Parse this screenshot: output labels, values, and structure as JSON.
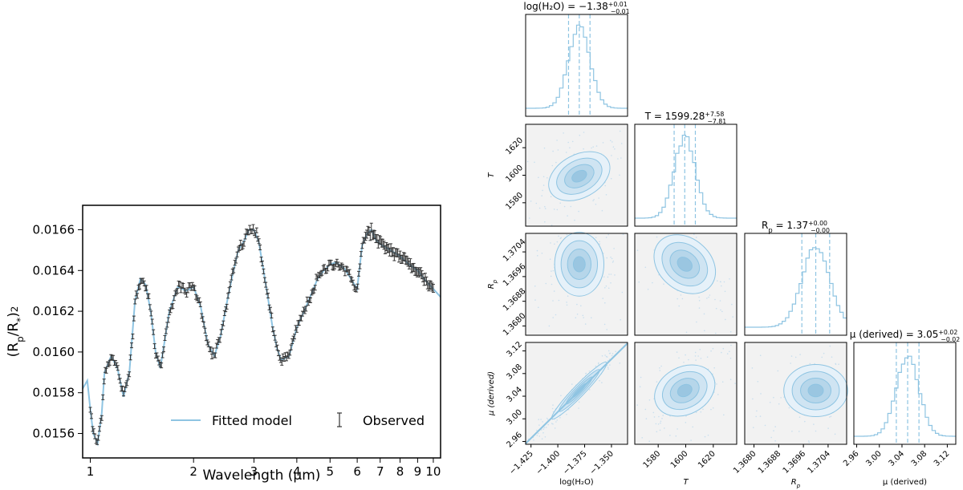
{
  "colors": {
    "model": "#8ec4e2",
    "observed": "#333333",
    "hist": "#8ec4e2",
    "panel_bg": "#f2f2f2"
  },
  "chart_data": [
    {
      "type": "line",
      "xlabel": "Wavelength (μm)",
      "ylabel": "(R_p/R_*)^2",
      "xscale": "log",
      "xlim": [
        0.95,
        10.5
      ],
      "ylim": [
        0.01548,
        0.01672
      ],
      "xticks": [
        "1",
        "2",
        "3",
        "4",
        "5",
        "6",
        "7",
        "8",
        "9",
        "10"
      ],
      "yticks": [
        "0.0156",
        "0.0158",
        "0.0160",
        "0.0162",
        "0.0164",
        "0.0166"
      ],
      "legend": {
        "placement": "bottom-right",
        "entries": [
          "Fitted model",
          "Observed"
        ]
      },
      "series": [
        {
          "name": "Fitted model",
          "x": [
            0.95,
            0.98,
            1.0,
            1.02,
            1.05,
            1.08,
            1.1,
            1.15,
            1.2,
            1.25,
            1.3,
            1.35,
            1.4,
            1.45,
            1.5,
            1.55,
            1.6,
            1.7,
            1.8,
            1.9,
            2.0,
            2.1,
            2.2,
            2.3,
            2.4,
            2.5,
            2.6,
            2.7,
            2.8,
            2.9,
            3.0,
            3.1,
            3.2,
            3.3,
            3.4,
            3.5,
            3.6,
            3.8,
            4.0,
            4.2,
            4.4,
            4.6,
            4.8,
            5.0,
            5.2,
            5.5,
            5.8,
            6.0,
            6.2,
            6.4,
            6.6,
            6.8,
            7.0,
            7.5,
            8.0,
            8.5,
            9.0,
            9.5,
            10.0,
            10.5
          ],
          "y": [
            0.01582,
            0.01586,
            0.01572,
            0.0156,
            0.01555,
            0.0157,
            0.0159,
            0.01598,
            0.01592,
            0.01578,
            0.0159,
            0.01625,
            0.01636,
            0.01633,
            0.0162,
            0.016,
            0.01592,
            0.0162,
            0.01632,
            0.0163,
            0.01632,
            0.01622,
            0.01604,
            0.01598,
            0.01608,
            0.01624,
            0.01638,
            0.0165,
            0.01654,
            0.0166,
            0.0166,
            0.01654,
            0.0164,
            0.01626,
            0.01612,
            0.01602,
            0.01596,
            0.01598,
            0.01612,
            0.0162,
            0.01628,
            0.01636,
            0.0164,
            0.01643,
            0.01644,
            0.01641,
            0.01635,
            0.01631,
            0.01652,
            0.01658,
            0.0166,
            0.01655,
            0.01653,
            0.0165,
            0.01647,
            0.01643,
            0.0164,
            0.01635,
            0.01631,
            0.01627
          ]
        },
        {
          "name": "Observed",
          "errorbars": true,
          "sampled_from": "Fitted model"
        }
      ]
    },
    {
      "type": "corner",
      "parameters": [
        "log(H₂O)",
        "T",
        "R_p",
        "μ (derived)"
      ],
      "y_parameter_labels": [
        "T",
        "R_p",
        "μ (derived)"
      ],
      "medians": [
        -1.38,
        1599.28,
        1.37,
        3.05
      ],
      "titles": [
        {
          "base": "log(H₂O) = −1.38",
          "sup": "+0.01",
          "sub": "−0.01"
        },
        {
          "base": "T = 1599.28",
          "sup": "+7.58",
          "sub": "−7.81"
        },
        {
          "base": "R_p = 1.37",
          "sup": "+0.00",
          "sub": "−0.00"
        },
        {
          "base": "μ (derived) = 3.05",
          "sup": "+0.02",
          "sub": "−0.02"
        }
      ],
      "ranges": [
        [
          -1.43,
          -1.335
        ],
        [
          1563,
          1637
        ],
        [
          1.3677,
          1.371
        ],
        [
          2.955,
          3.135
        ]
      ],
      "ticks": [
        [
          -1.425,
          -1.4,
          -1.375,
          -1.35
        ],
        [
          1580,
          1600,
          1620
        ],
        [
          1.368,
          1.3688,
          1.3696,
          1.3704
        ],
        [
          2.96,
          3.0,
          3.04,
          3.08,
          3.12
        ]
      ],
      "tick_labels": [
        [
          "−1.425",
          "−1.400",
          "−1.375",
          "−1.350"
        ],
        [
          "1580",
          "1600",
          "1620"
        ],
        [
          "1.3680",
          "1.3688",
          "1.3696",
          "1.3704"
        ],
        [
          "2.96",
          "3.00",
          "3.04",
          "3.08",
          "3.12"
        ]
      ],
      "y_tick_labels": [
        [
          "1580",
          "1600",
          "1620"
        ],
        [
          "1.3680",
          "1.3688",
          "1.3696",
          "1.3704"
        ],
        [
          "2.96",
          "3.00",
          "3.04",
          "3.08",
          "3.12"
        ]
      ],
      "sigmas": [
        0.01,
        7.7,
        0.00045,
        0.02
      ],
      "quantiles": [
        0.16,
        0.5,
        0.84
      ],
      "correlations": {
        "T|log(H₂O)": 0.55,
        "R_p|T": -0.65,
        "μ (derived)|log(H₂O)": 0.98,
        "μ (derived)|T": 0.5
      }
    }
  ]
}
